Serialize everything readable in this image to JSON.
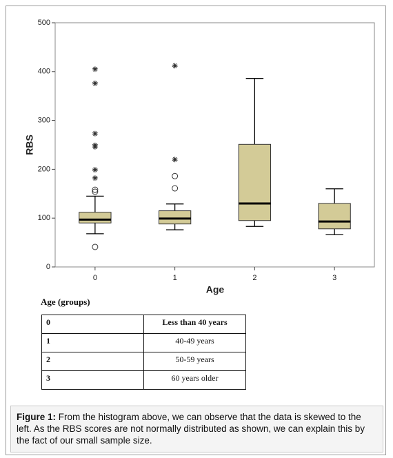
{
  "chart_data": {
    "type": "box",
    "xlabel": "Age",
    "ylabel": "RBS",
    "categories": [
      "0",
      "1",
      "2",
      "3"
    ],
    "ylim": [
      0,
      500
    ],
    "yticks": [
      0,
      100,
      200,
      300,
      400,
      500
    ],
    "color": "#d3cb97",
    "boxes": [
      {
        "whisker_low": 68,
        "q1": 90,
        "median": 97,
        "q3": 112,
        "whisker_high": 145,
        "outliers": [
          41,
          154,
          158
        ],
        "extremes": [
          405,
          376,
          273,
          249,
          246,
          199,
          182
        ]
      },
      {
        "whisker_low": 76,
        "q1": 88,
        "median": 99,
        "q3": 115,
        "whisker_high": 129,
        "outliers": [
          186,
          161
        ],
        "extremes": [
          412,
          220
        ]
      },
      {
        "whisker_low": 83,
        "q1": 95,
        "median": 130,
        "q3": 251,
        "whisker_high": 386,
        "outliers": [],
        "extremes": []
      },
      {
        "whisker_low": 66,
        "q1": 78,
        "median": 93,
        "q3": 130,
        "whisker_high": 160,
        "outliers": [],
        "extremes": []
      }
    ]
  },
  "legend_table": {
    "title": "Age (groups)",
    "rows": [
      [
        "0",
        "Less than 40 years"
      ],
      [
        "1",
        "40-49 years"
      ],
      [
        "2",
        "50-59 years"
      ],
      [
        "3",
        "60 years older"
      ]
    ]
  },
  "caption": {
    "label": "Figure 1:",
    "text": "From the histogram above, we can observe that the data is skewed to the left. As the RBS scores are not normally distributed as shown, we can explain this by the fact of our small sample size."
  }
}
